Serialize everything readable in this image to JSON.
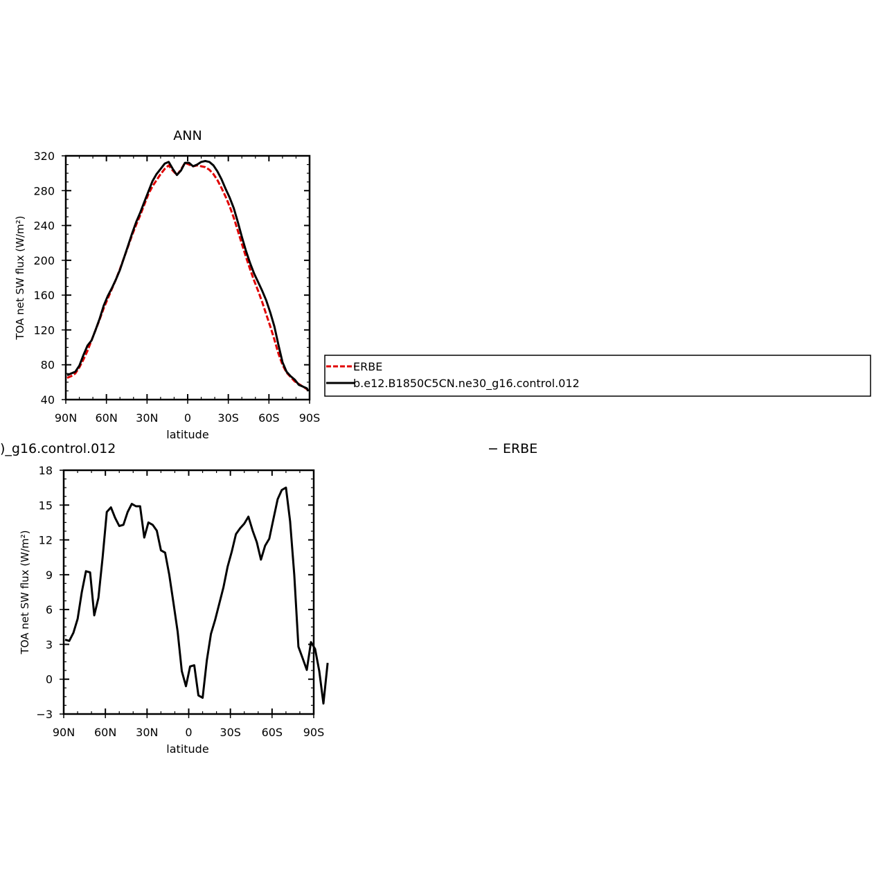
{
  "chart_data": [
    {
      "type": "line",
      "title": "ANN",
      "xlabel": "latitude",
      "ylabel": "TOA net SW flux (W/m²)",
      "xlim": [
        90,
        -90
      ],
      "ylim": [
        40,
        320
      ],
      "x_ticks": [
        {
          "value": 90,
          "label": "90N"
        },
        {
          "value": 60,
          "label": "60N"
        },
        {
          "value": 30,
          "label": "30N"
        },
        {
          "value": 0,
          "label": "0"
        },
        {
          "value": -30,
          "label": "30S"
        },
        {
          "value": -60,
          "label": "60S"
        },
        {
          "value": -90,
          "label": "90S"
        }
      ],
      "y_ticks": [
        40,
        80,
        120,
        160,
        200,
        240,
        280,
        320
      ],
      "legend": {
        "placement": "right",
        "boxed": true
      },
      "series": [
        {
          "name": "ERBE",
          "color": "#e00000",
          "dash": "dashed",
          "points": [
            [
              89,
              65
            ],
            [
              86,
              67
            ],
            [
              83,
              70
            ],
            [
              80,
              77
            ],
            [
              77,
              86
            ],
            [
              74,
              96
            ],
            [
              71,
              108
            ],
            [
              68,
              120
            ],
            [
              65,
              132
            ],
            [
              62,
              145
            ],
            [
              59,
              156
            ],
            [
              56,
              167
            ],
            [
              53,
              178
            ],
            [
              50,
              190
            ],
            [
              47,
              203
            ],
            [
              44,
              216
            ],
            [
              41,
              229
            ],
            [
              38,
              241
            ],
            [
              35,
              252
            ],
            [
              32,
              264
            ],
            [
              29,
              276
            ],
            [
              26,
              285
            ],
            [
              23,
              292
            ],
            [
              20,
              299
            ],
            [
              17,
              305
            ],
            [
              14,
              309
            ],
            [
              11,
              303
            ],
            [
              8,
              298
            ],
            [
              5,
              304
            ],
            [
              2,
              312
            ],
            [
              -1,
              310
            ],
            [
              -4,
              308
            ],
            [
              -7,
              309
            ],
            [
              -10,
              308
            ],
            [
              -13,
              307
            ],
            [
              -16,
              304
            ],
            [
              -19,
              299
            ],
            [
              -22,
              292
            ],
            [
              -25,
              283
            ],
            [
              -28,
              273
            ],
            [
              -31,
              262
            ],
            [
              -34,
              249
            ],
            [
              -37,
              234
            ],
            [
              -40,
              219
            ],
            [
              -43,
              204
            ],
            [
              -46,
              190
            ],
            [
              -49,
              177
            ],
            [
              -52,
              165
            ],
            [
              -55,
              152
            ],
            [
              -58,
              138
            ],
            [
              -61,
              124
            ],
            [
              -64,
              109
            ],
            [
              -67,
              93
            ],
            [
              -70,
              80
            ],
            [
              -73,
              71
            ],
            [
              -76,
              66
            ],
            [
              -79,
              61
            ],
            [
              -82,
              58
            ],
            [
              -85,
              55
            ],
            [
              -88,
              52
            ],
            [
              -89,
              50
            ]
          ]
        },
        {
          "name": "b.e12.B1850C5CN.ne30_g16.control.012",
          "color": "#000000",
          "dash": "solid",
          "points": [
            [
              89,
              68
            ],
            [
              86,
              70
            ],
            [
              83,
              72
            ],
            [
              80,
              79
            ],
            [
              77,
              91
            ],
            [
              74,
              102
            ],
            [
              71,
              108
            ],
            [
              68,
              120
            ],
            [
              65,
              133
            ],
            [
              62,
              148
            ],
            [
              59,
              159
            ],
            [
              56,
              168
            ],
            [
              53,
              178
            ],
            [
              50,
              189
            ],
            [
              47,
              203
            ],
            [
              44,
              217
            ],
            [
              41,
              231
            ],
            [
              38,
              244
            ],
            [
              35,
              255
            ],
            [
              32,
              267
            ],
            [
              29,
              279
            ],
            [
              26,
              291
            ],
            [
              23,
              299
            ],
            [
              20,
              305
            ],
            [
              17,
              311
            ],
            [
              14,
              313
            ],
            [
              11,
              305
            ],
            [
              8,
              298
            ],
            [
              5,
              303
            ],
            [
              2,
              312
            ],
            [
              -1,
              312
            ],
            [
              -4,
              308
            ],
            [
              -7,
              310
            ],
            [
              -10,
              313
            ],
            [
              -13,
              314
            ],
            [
              -16,
              313
            ],
            [
              -19,
              309
            ],
            [
              -22,
              302
            ],
            [
              -25,
              293
            ],
            [
              -28,
              282
            ],
            [
              -31,
              272
            ],
            [
              -34,
              260
            ],
            [
              -37,
              244
            ],
            [
              -40,
              227
            ],
            [
              -43,
              211
            ],
            [
              -46,
              197
            ],
            [
              -49,
              185
            ],
            [
              -52,
              175
            ],
            [
              -55,
              165
            ],
            [
              -58,
              154
            ],
            [
              -61,
              140
            ],
            [
              -64,
              124
            ],
            [
              -67,
              103
            ],
            [
              -70,
              83
            ],
            [
              -73,
              72
            ],
            [
              -76,
              67
            ],
            [
              -79,
              63
            ],
            [
              -82,
              57
            ],
            [
              -85,
              55
            ],
            [
              -88,
              53
            ],
            [
              -89,
              50
            ]
          ]
        }
      ]
    },
    {
      "type": "line",
      "title_left": ")_g16.control.012",
      "title_right": "− ERBE",
      "xlabel": "latitude",
      "ylabel": "TOA net SW flux (W/m²)",
      "xlim": [
        90,
        -90
      ],
      "ylim": [
        -3,
        18
      ],
      "x_ticks": [
        {
          "value": 90,
          "label": "90N"
        },
        {
          "value": 60,
          "label": "60N"
        },
        {
          "value": 30,
          "label": "30N"
        },
        {
          "value": 0,
          "label": "0"
        },
        {
          "value": -30,
          "label": "30S"
        },
        {
          "value": -60,
          "label": "60S"
        },
        {
          "value": -90,
          "label": "90S"
        }
      ],
      "y_ticks": [
        -3,
        0,
        3,
        6,
        9,
        12,
        15,
        18
      ],
      "series": [
        {
          "name": "",
          "color": "#000000",
          "dash": "solid",
          "points": [
            [
              89,
              3.4
            ],
            [
              86,
              3.3
            ],
            [
              83,
              4.0
            ],
            [
              80,
              5.2
            ],
            [
              77,
              7.5
            ],
            [
              74,
              9.3
            ],
            [
              71,
              9.2
            ],
            [
              68,
              5.5
            ],
            [
              65,
              7.0
            ],
            [
              62,
              10.5
            ],
            [
              59,
              14.4
            ],
            [
              56,
              14.8
            ],
            [
              53,
              13.9
            ],
            [
              50,
              13.2
            ],
            [
              47,
              13.3
            ],
            [
              44,
              14.4
            ],
            [
              41,
              15.1
            ],
            [
              38,
              14.9
            ],
            [
              35,
              14.9
            ],
            [
              32,
              12.2
            ],
            [
              29,
              13.5
            ],
            [
              26,
              13.3
            ],
            [
              23,
              12.8
            ],
            [
              20,
              11.1
            ],
            [
              17,
              10.9
            ],
            [
              14,
              9.0
            ],
            [
              11,
              6.6
            ],
            [
              8,
              4.1
            ],
            [
              5,
              0.7
            ],
            [
              2,
              -0.6
            ],
            [
              -1,
              1.1
            ],
            [
              -4,
              1.2
            ],
            [
              -7,
              -1.4
            ],
            [
              -10,
              -1.6
            ],
            [
              -13,
              1.6
            ],
            [
              -16,
              3.9
            ],
            [
              -19,
              5.1
            ],
            [
              -22,
              6.5
            ],
            [
              -25,
              7.9
            ],
            [
              -28,
              9.7
            ],
            [
              -31,
              11.0
            ],
            [
              -34,
              12.5
            ],
            [
              -37,
              13.0
            ],
            [
              -40,
              13.4
            ],
            [
              -43,
              14.0
            ],
            [
              -46,
              12.8
            ],
            [
              -49,
              11.8
            ],
            [
              -52,
              10.3
            ],
            [
              -55,
              11.5
            ],
            [
              -58,
              12.1
            ],
            [
              -61,
              13.8
            ],
            [
              -64,
              15.5
            ],
            [
              -67,
              16.3
            ],
            [
              -70,
              16.5
            ],
            [
              -73,
              13.6
            ],
            [
              -76,
              9.0
            ],
            [
              -79,
              2.8
            ],
            [
              -82,
              1.8
            ],
            [
              -85,
              0.8
            ],
            [
              -88,
              3.2
            ],
            [
              -91,
              2.6
            ],
            [
              -94,
              0.7
            ],
            [
              -97,
              -2.1
            ],
            [
              -100,
              1.4
            ]
          ]
        }
      ]
    }
  ]
}
